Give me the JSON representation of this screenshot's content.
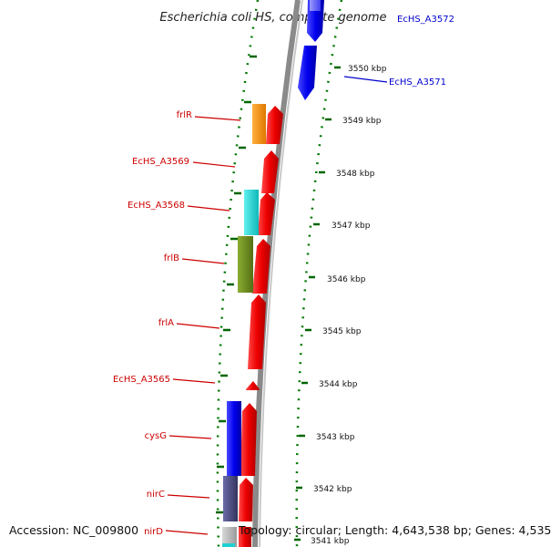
{
  "title": "Escherichia coli HS, complete genome",
  "accession": "Accession: NC_009800",
  "topology": "Topology: circular; Length: 4,643,538 bp; Genes: 4,535",
  "colors": {
    "red": "#ee0000",
    "blue": "#0000ee",
    "orange": "#f08a00",
    "cyan": "#20d0d0",
    "olive": "#6a8a20",
    "slate": "#484880",
    "tick_green": "#006600",
    "backbone": "#888888"
  },
  "kbp_labels": [
    "3550 kbp",
    "3549 kbp",
    "3548 kbp",
    "3547 kbp",
    "3546 kbp",
    "3545 kbp",
    "3544 kbp",
    "3543 kbp",
    "3542 kbp",
    "3541 kbp"
  ],
  "genes": [
    {
      "name": "EcHS_A3572",
      "label": "EcHS_A3572",
      "color": "#0000ee",
      "strand": "blue-lane"
    },
    {
      "name": "EcHS_A3571",
      "label": "EcHS_A3571",
      "color": "#0000ee",
      "strand": "blue-lane"
    },
    {
      "name": "frlR",
      "label": "frlR",
      "color": "#f08a00",
      "strand": "inner"
    },
    {
      "name": "EcHS_A3569",
      "label": "EcHS_A3569",
      "color": "#ee0000",
      "strand": "outer"
    },
    {
      "name": "EcHS_A3568",
      "label": "EcHS_A3568",
      "color": "#20d0d0",
      "strand": "inner"
    },
    {
      "name": "frlB",
      "label": "frlB",
      "color": "#6a8a20",
      "strand": "inner"
    },
    {
      "name": "frlA",
      "label": "frlA",
      "color": "#ee0000",
      "strand": "outer"
    },
    {
      "name": "EcHS_A3565",
      "label": "EcHS_A3565",
      "color": "#ee0000",
      "strand": "outer"
    },
    {
      "name": "cysG",
      "label": "cysG",
      "color": "#0000ee",
      "strand": "inner"
    },
    {
      "name": "nirC",
      "label": "nirC",
      "color": "#484880",
      "strand": "inner"
    },
    {
      "name": "nirD",
      "label": "nirD",
      "color": "#20d0d0",
      "strand": "inner"
    }
  ]
}
